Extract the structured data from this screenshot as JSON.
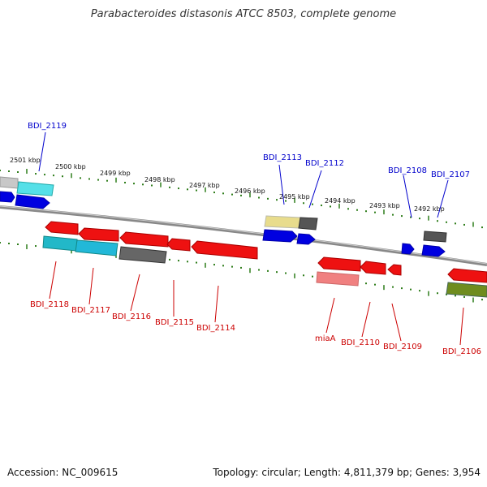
{
  "title": "Parabacteroides distasonis ATCC 8503, complete genome",
  "footer": {
    "accession": "Accession: NC_009615",
    "summary": "Topology: circular; Length: 4,811,379 bp; Genes: 3,954"
  },
  "colors": {
    "upper_label": "#0000cc",
    "lower_label": "#cc0000",
    "tick": "#2e7d1a",
    "backbone": "#888888"
  },
  "scale_labels": [
    "2501 kbp",
    "2500 kbp",
    "2499 kbp",
    "2498 kbp",
    "2497 kbp",
    "2496 kbp",
    "2495 kbp",
    "2494 kbp",
    "2493 kbp",
    "2492 kbp"
  ],
  "upper_genes": [
    "BDI_2119",
    "BDI_2113",
    "BDI_2112",
    "BDI_2108",
    "BDI_2107"
  ],
  "lower_genes": [
    "BDI_2118",
    "BDI_2117",
    "BDI_2116",
    "BDI_2115",
    "BDI_2114",
    "miaA",
    "BDI_2110",
    "BDI_2109",
    "BDI_2106"
  ]
}
